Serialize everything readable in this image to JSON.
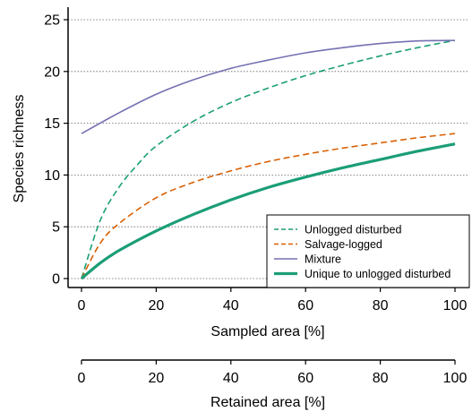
{
  "chart_data": {
    "type": "line",
    "title": "",
    "xlabel": "Sampled area [%]",
    "ylabel": "Species richness",
    "secondary_xlabel": "Retained area [%]",
    "xlim": [
      0,
      100
    ],
    "ylim": [
      0,
      25
    ],
    "secondary_xlim": [
      100,
      0
    ],
    "xticks": [
      "0",
      "20",
      "40",
      "60",
      "80",
      "100"
    ],
    "yticks": [
      "0",
      "5",
      "10",
      "15",
      "20",
      "25"
    ],
    "secondary_xticks": [
      "0",
      "20",
      "40",
      "60",
      "80",
      "100"
    ],
    "grid": "horizontal dotted",
    "legend_position": "bottom-right",
    "series": [
      {
        "name": "Unlogged disturbed",
        "style": "dashed",
        "color": "#1b9e77",
        "x": [
          0,
          5,
          10,
          15,
          20,
          30,
          40,
          50,
          60,
          70,
          80,
          90,
          100
        ],
        "y": [
          0,
          5.6,
          8.8,
          11,
          12.8,
          15.2,
          17,
          18.4,
          19.6,
          20.6,
          21.5,
          22.3,
          23
        ]
      },
      {
        "name": "Salvage-logged",
        "style": "dashed",
        "color": "#d95f02",
        "x": [
          0,
          5,
          10,
          20,
          30,
          40,
          50,
          60,
          70,
          80,
          90,
          100
        ],
        "y": [
          0,
          3.4,
          5.3,
          7.8,
          9.3,
          10.4,
          11.3,
          12,
          12.6,
          13.1,
          13.6,
          14
        ]
      },
      {
        "name": "Mixture",
        "style": "solid",
        "color": "#7570b3",
        "x": [
          0,
          10,
          20,
          30,
          40,
          50,
          60,
          70,
          80,
          90,
          100
        ],
        "y": [
          14,
          16,
          17.8,
          19.2,
          20.3,
          21.1,
          21.8,
          22.3,
          22.7,
          22.95,
          23
        ]
      },
      {
        "name": "Unique to unlogged disturbed",
        "style": "solid-thick",
        "color": "#1b9e77",
        "x": [
          0,
          5,
          10,
          20,
          30,
          40,
          50,
          60,
          70,
          80,
          90,
          100
        ],
        "y": [
          0,
          1.5,
          2.7,
          4.6,
          6.2,
          7.6,
          8.8,
          9.8,
          10.7,
          11.5,
          12.3,
          13
        ]
      }
    ]
  }
}
